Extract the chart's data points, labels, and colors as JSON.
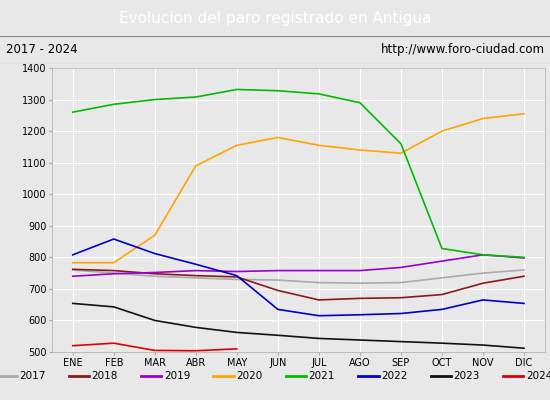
{
  "title": "Evolucion del paro registrado en Antigua",
  "subtitle_left": "2017 - 2024",
  "subtitle_right": "http://www.foro-ciudad.com",
  "title_bg": "#5b9bd5",
  "title_color": "white",
  "ylim": [
    500,
    1400
  ],
  "months": [
    "ENE",
    "FEB",
    "MAR",
    "ABR",
    "MAY",
    "JUN",
    "JUL",
    "AGO",
    "SEP",
    "OCT",
    "NOV",
    "DIC"
  ],
  "series_order": [
    "2017",
    "2018",
    "2019",
    "2020",
    "2021",
    "2022",
    "2023",
    "2024"
  ],
  "series": {
    "2017": {
      "color": "#aaaaaa",
      "data": [
        760,
        750,
        740,
        735,
        730,
        728,
        720,
        718,
        720,
        735,
        750,
        760
      ]
    },
    "2018": {
      "color": "#8b1a1a",
      "data": [
        762,
        758,
        748,
        742,
        738,
        695,
        665,
        670,
        672,
        682,
        718,
        740
      ]
    },
    "2019": {
      "color": "#9900cc",
      "data": [
        740,
        748,
        752,
        758,
        755,
        758,
        758,
        758,
        768,
        788,
        808,
        798
      ]
    },
    "2020": {
      "color": "#ffa500",
      "data": [
        783,
        783,
        870,
        1090,
        1155,
        1180,
        1155,
        1140,
        1130,
        1200,
        1240,
        1255
      ]
    },
    "2021": {
      "color": "#00bb00",
      "data": [
        1260,
        1285,
        1300,
        1308,
        1332,
        1328,
        1318,
        1290,
        1160,
        828,
        808,
        800
      ]
    },
    "2022": {
      "color": "#0000cc",
      "data": [
        808,
        858,
        812,
        778,
        742,
        635,
        615,
        618,
        622,
        635,
        665,
        654
      ]
    },
    "2023": {
      "color": "#111111",
      "data": [
        654,
        643,
        600,
        578,
        562,
        553,
        543,
        538,
        533,
        528,
        522,
        512
      ]
    },
    "2024": {
      "color": "#dd0000",
      "data": [
        520,
        528,
        505,
        504,
        510,
        null,
        null,
        null,
        null,
        null,
        null,
        null
      ]
    }
  },
  "bg_color": "#e8e8e8",
  "plot_bg": "#e8e8e8",
  "grid_color": "white",
  "subtitle_bg": "#e0e0e0"
}
